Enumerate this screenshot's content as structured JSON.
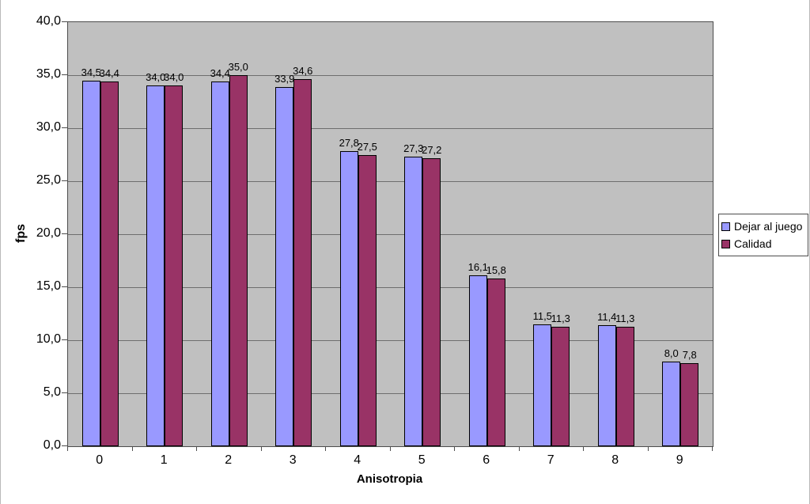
{
  "chart_data": {
    "type": "bar",
    "title": "",
    "xlabel": "Anisotropia",
    "ylabel": "fps",
    "categories": [
      "0",
      "1",
      "2",
      "3",
      "4",
      "5",
      "6",
      "7",
      "8",
      "9"
    ],
    "series": [
      {
        "name": "Dejar al juego",
        "color": "#9999ff",
        "values": [
          34.5,
          34.0,
          34.4,
          33.9,
          27.8,
          27.3,
          16.1,
          11.5,
          11.4,
          8.0
        ],
        "labels": [
          "34,5",
          "34,0",
          "34,4",
          "33,9",
          "27,8",
          "27,3",
          "16,1",
          "11,5",
          "11,4",
          "8,0"
        ]
      },
      {
        "name": "Calidad",
        "color": "#993366",
        "values": [
          34.4,
          34.0,
          35.0,
          34.6,
          27.5,
          27.2,
          15.8,
          11.3,
          11.3,
          7.8
        ],
        "labels": [
          "34,4",
          "34,0",
          "35,0",
          "34,6",
          "27,5",
          "27,2",
          "15,8",
          "11,3",
          "11,3",
          "7,8"
        ]
      }
    ],
    "ylim": [
      0,
      40
    ],
    "ytick_step": 5,
    "ytick_labels": [
      "0,0",
      "5,0",
      "10,0",
      "15,0",
      "20,0",
      "25,0",
      "30,0",
      "35,0",
      "40,0"
    ],
    "grid": true,
    "legend_position": "right",
    "plot_bg": "#c0c0c0"
  },
  "legend": {
    "items": [
      {
        "label": "Dejar al juego",
        "color": "#9999ff"
      },
      {
        "label": "Calidad",
        "color": "#993366"
      }
    ]
  }
}
